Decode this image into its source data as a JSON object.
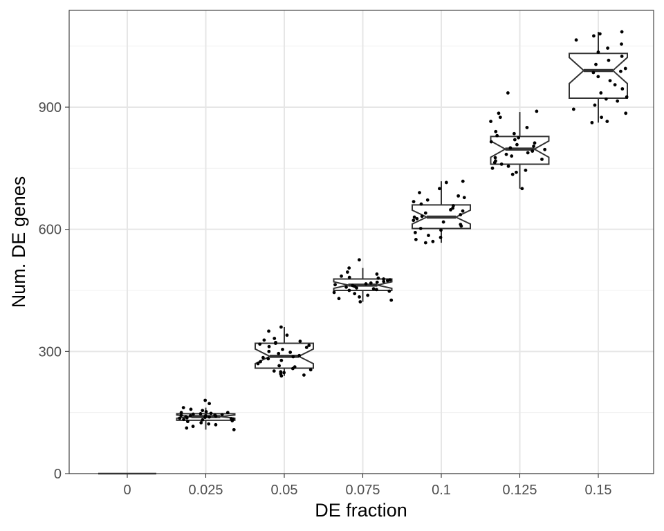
{
  "chart_data": {
    "type": "box",
    "xlabel": "DE fraction",
    "ylabel": "Num. DE genes",
    "categories": [
      "0",
      "0.025",
      "0.05",
      "0.075",
      "0.1",
      "0.125",
      "0.15"
    ],
    "ylim": [
      0,
      1100
    ],
    "yticks": [
      0,
      300,
      600,
      900
    ],
    "grid": true,
    "notched": true,
    "boxes": [
      {
        "category": "0",
        "min": 0,
        "q1": 0,
        "median": 0,
        "q3": 0,
        "max": 0,
        "notch_low": 0,
        "notch_high": 0
      },
      {
        "category": "0.025",
        "min": 108,
        "q1": 131,
        "median": 140,
        "q3": 147,
        "max": 162,
        "notch_low": 136,
        "notch_high": 144
      },
      {
        "category": "0.05",
        "min": 240,
        "q1": 259,
        "median": 288,
        "q3": 320,
        "max": 360,
        "notch_low": 270,
        "notch_high": 306
      },
      {
        "category": "0.075",
        "min": 422,
        "q1": 450,
        "median": 463,
        "q3": 478,
        "max": 505,
        "notch_low": 455,
        "notch_high": 471
      },
      {
        "category": "0.1",
        "min": 567,
        "q1": 602,
        "median": 630,
        "q3": 660,
        "max": 718,
        "notch_low": 613,
        "notch_high": 647
      },
      {
        "category": "0.125",
        "min": 700,
        "q1": 760,
        "median": 797,
        "q3": 828,
        "max": 888,
        "notch_low": 777,
        "notch_high": 817
      },
      {
        "category": "0.15",
        "min": 862,
        "q1": 922,
        "median": 990,
        "q3": 1032,
        "max": 1085,
        "notch_low": 958,
        "notch_high": 1022
      }
    ],
    "points": [
      [],
      [
        180,
        172,
        162,
        158,
        155,
        152,
        150,
        150,
        148,
        147,
        146,
        145,
        144,
        143,
        142,
        142,
        141,
        140,
        139,
        138,
        137,
        136,
        135,
        134,
        133,
        132,
        130,
        128,
        125,
        122,
        120,
        116,
        112,
        108
      ],
      [
        360,
        350,
        340,
        332,
        328,
        325,
        322,
        320,
        318,
        315,
        312,
        310,
        305,
        300,
        298,
        295,
        290,
        287,
        285,
        282,
        278,
        275,
        270,
        265,
        262,
        258,
        255,
        252,
        250,
        248,
        245,
        242,
        240
      ],
      [
        525,
        505,
        495,
        490,
        485,
        482,
        480,
        478,
        476,
        474,
        472,
        470,
        468,
        466,
        464,
        462,
        460,
        458,
        456,
        454,
        452,
        450,
        448,
        445,
        442,
        438,
        434,
        430,
        426,
        422
      ],
      [
        718,
        715,
        700,
        690,
        682,
        678,
        672,
        668,
        662,
        658,
        652,
        648,
        645,
        640,
        636,
        632,
        630,
        626,
        622,
        618,
        612,
        608,
        602,
        598,
        592,
        585,
        580,
        575,
        570,
        567
      ],
      [
        935,
        890,
        885,
        875,
        865,
        850,
        840,
        835,
        830,
        825,
        820,
        815,
        812,
        808,
        804,
        800,
        796,
        792,
        788,
        784,
        780,
        776,
        772,
        768,
        764,
        760,
        755,
        750,
        745,
        740,
        735,
        700
      ],
      [
        1085,
        1080,
        1075,
        1065,
        1055,
        1045,
        1035,
        1025,
        1015,
        1005,
        995,
        988,
        985,
        975,
        965,
        955,
        945,
        935,
        925,
        920,
        915,
        905,
        895,
        885,
        875,
        865,
        862
      ]
    ]
  }
}
